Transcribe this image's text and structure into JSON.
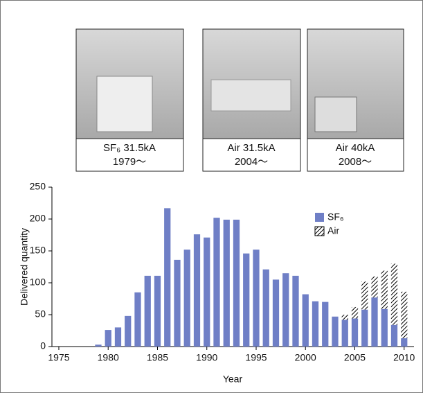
{
  "photos": [
    {
      "caption": [
        "SF₆  31.5kA",
        "1979〜"
      ]
    },
    {
      "caption": [
        "Air  31.5kA",
        "2004〜"
      ]
    },
    {
      "caption": [
        "Air  40kA",
        "2008〜"
      ]
    }
  ],
  "chart_data": {
    "type": "stacked-bar",
    "ylabel": "Delivered quantity",
    "xlabel": "Year",
    "x": [
      1979,
      1980,
      1981,
      1982,
      1983,
      1984,
      1985,
      1986,
      1987,
      1988,
      1989,
      1990,
      1991,
      1992,
      1993,
      1994,
      1995,
      1996,
      1997,
      1998,
      1999,
      2000,
      2001,
      2002,
      2003,
      2004,
      2005,
      2006,
      2007,
      2008,
      2009,
      2010
    ],
    "series": [
      {
        "name": "SF₆",
        "color": "#6f7fc6",
        "values": [
          3,
          26,
          30,
          48,
          85,
          111,
          111,
          217,
          136,
          152,
          176,
          171,
          202,
          199,
          199,
          146,
          152,
          121,
          105,
          115,
          111,
          82,
          71,
          70,
          47,
          42,
          44,
          58,
          77,
          59,
          34,
          13
        ]
      },
      {
        "name": "Air",
        "color": "#000000",
        "hatch": true,
        "values": [
          0,
          0,
          0,
          0,
          0,
          0,
          0,
          0,
          0,
          0,
          0,
          0,
          0,
          0,
          0,
          0,
          0,
          0,
          0,
          0,
          0,
          0,
          0,
          0,
          0,
          8,
          18,
          44,
          33,
          60,
          96,
          73
        ]
      }
    ],
    "xlim": [
      1974.3,
      2011
    ],
    "xticks": [
      1975,
      1980,
      1985,
      1990,
      1995,
      2000,
      2005,
      2010
    ],
    "ylim": [
      0,
      250
    ],
    "yticks": [
      0,
      50,
      100,
      150,
      200,
      250
    ]
  }
}
